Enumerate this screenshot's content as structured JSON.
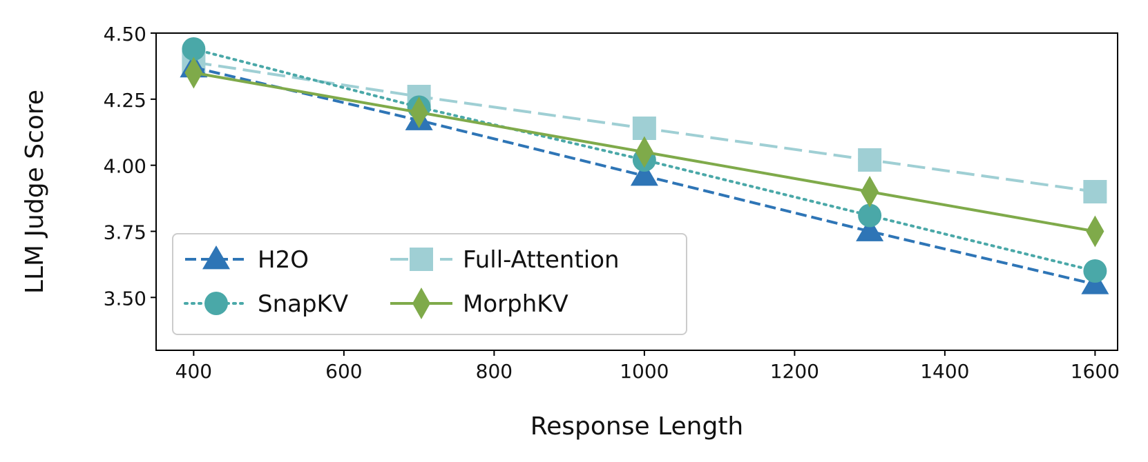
{
  "chart_data": {
    "type": "line",
    "title": "",
    "xlabel": "Response Length",
    "ylabel": "LLM Judge Score",
    "xlim": [
      350,
      1630
    ],
    "ylim": [
      3.3,
      4.5
    ],
    "xticks": [
      400,
      600,
      800,
      1000,
      1200,
      1400,
      1600
    ],
    "xtick_labels": [
      "400",
      "600",
      "800",
      "1000",
      "1200",
      "1400",
      "1600"
    ],
    "yticks": [
      3.5,
      3.75,
      4.0,
      4.25,
      4.5
    ],
    "ytick_labels": [
      "3.50",
      "3.75",
      "4.00",
      "4.25",
      "4.50"
    ],
    "grid": false,
    "legend_position": "lower-left",
    "x": [
      400,
      700,
      1000,
      1300,
      1600
    ],
    "series": [
      {
        "name": "H2O",
        "values": [
          4.37,
          4.17,
          3.96,
          3.75,
          3.55
        ],
        "color": "#2e75b6",
        "marker": "triangle",
        "dash": "dashed"
      },
      {
        "name": "SnapKV",
        "values": [
          4.44,
          4.22,
          4.02,
          3.81,
          3.6
        ],
        "color": "#4aa8a8",
        "marker": "circle",
        "dash": "dotted"
      },
      {
        "name": "Full-Attention",
        "values": [
          4.39,
          4.26,
          4.14,
          4.02,
          3.9
        ],
        "color": "#9fcfd4",
        "marker": "square",
        "dash": "longdash"
      },
      {
        "name": "MorphKV",
        "values": [
          4.35,
          4.2,
          4.05,
          3.9,
          3.75
        ],
        "color": "#7faa4a",
        "marker": "diamond",
        "dash": "solid"
      }
    ]
  }
}
